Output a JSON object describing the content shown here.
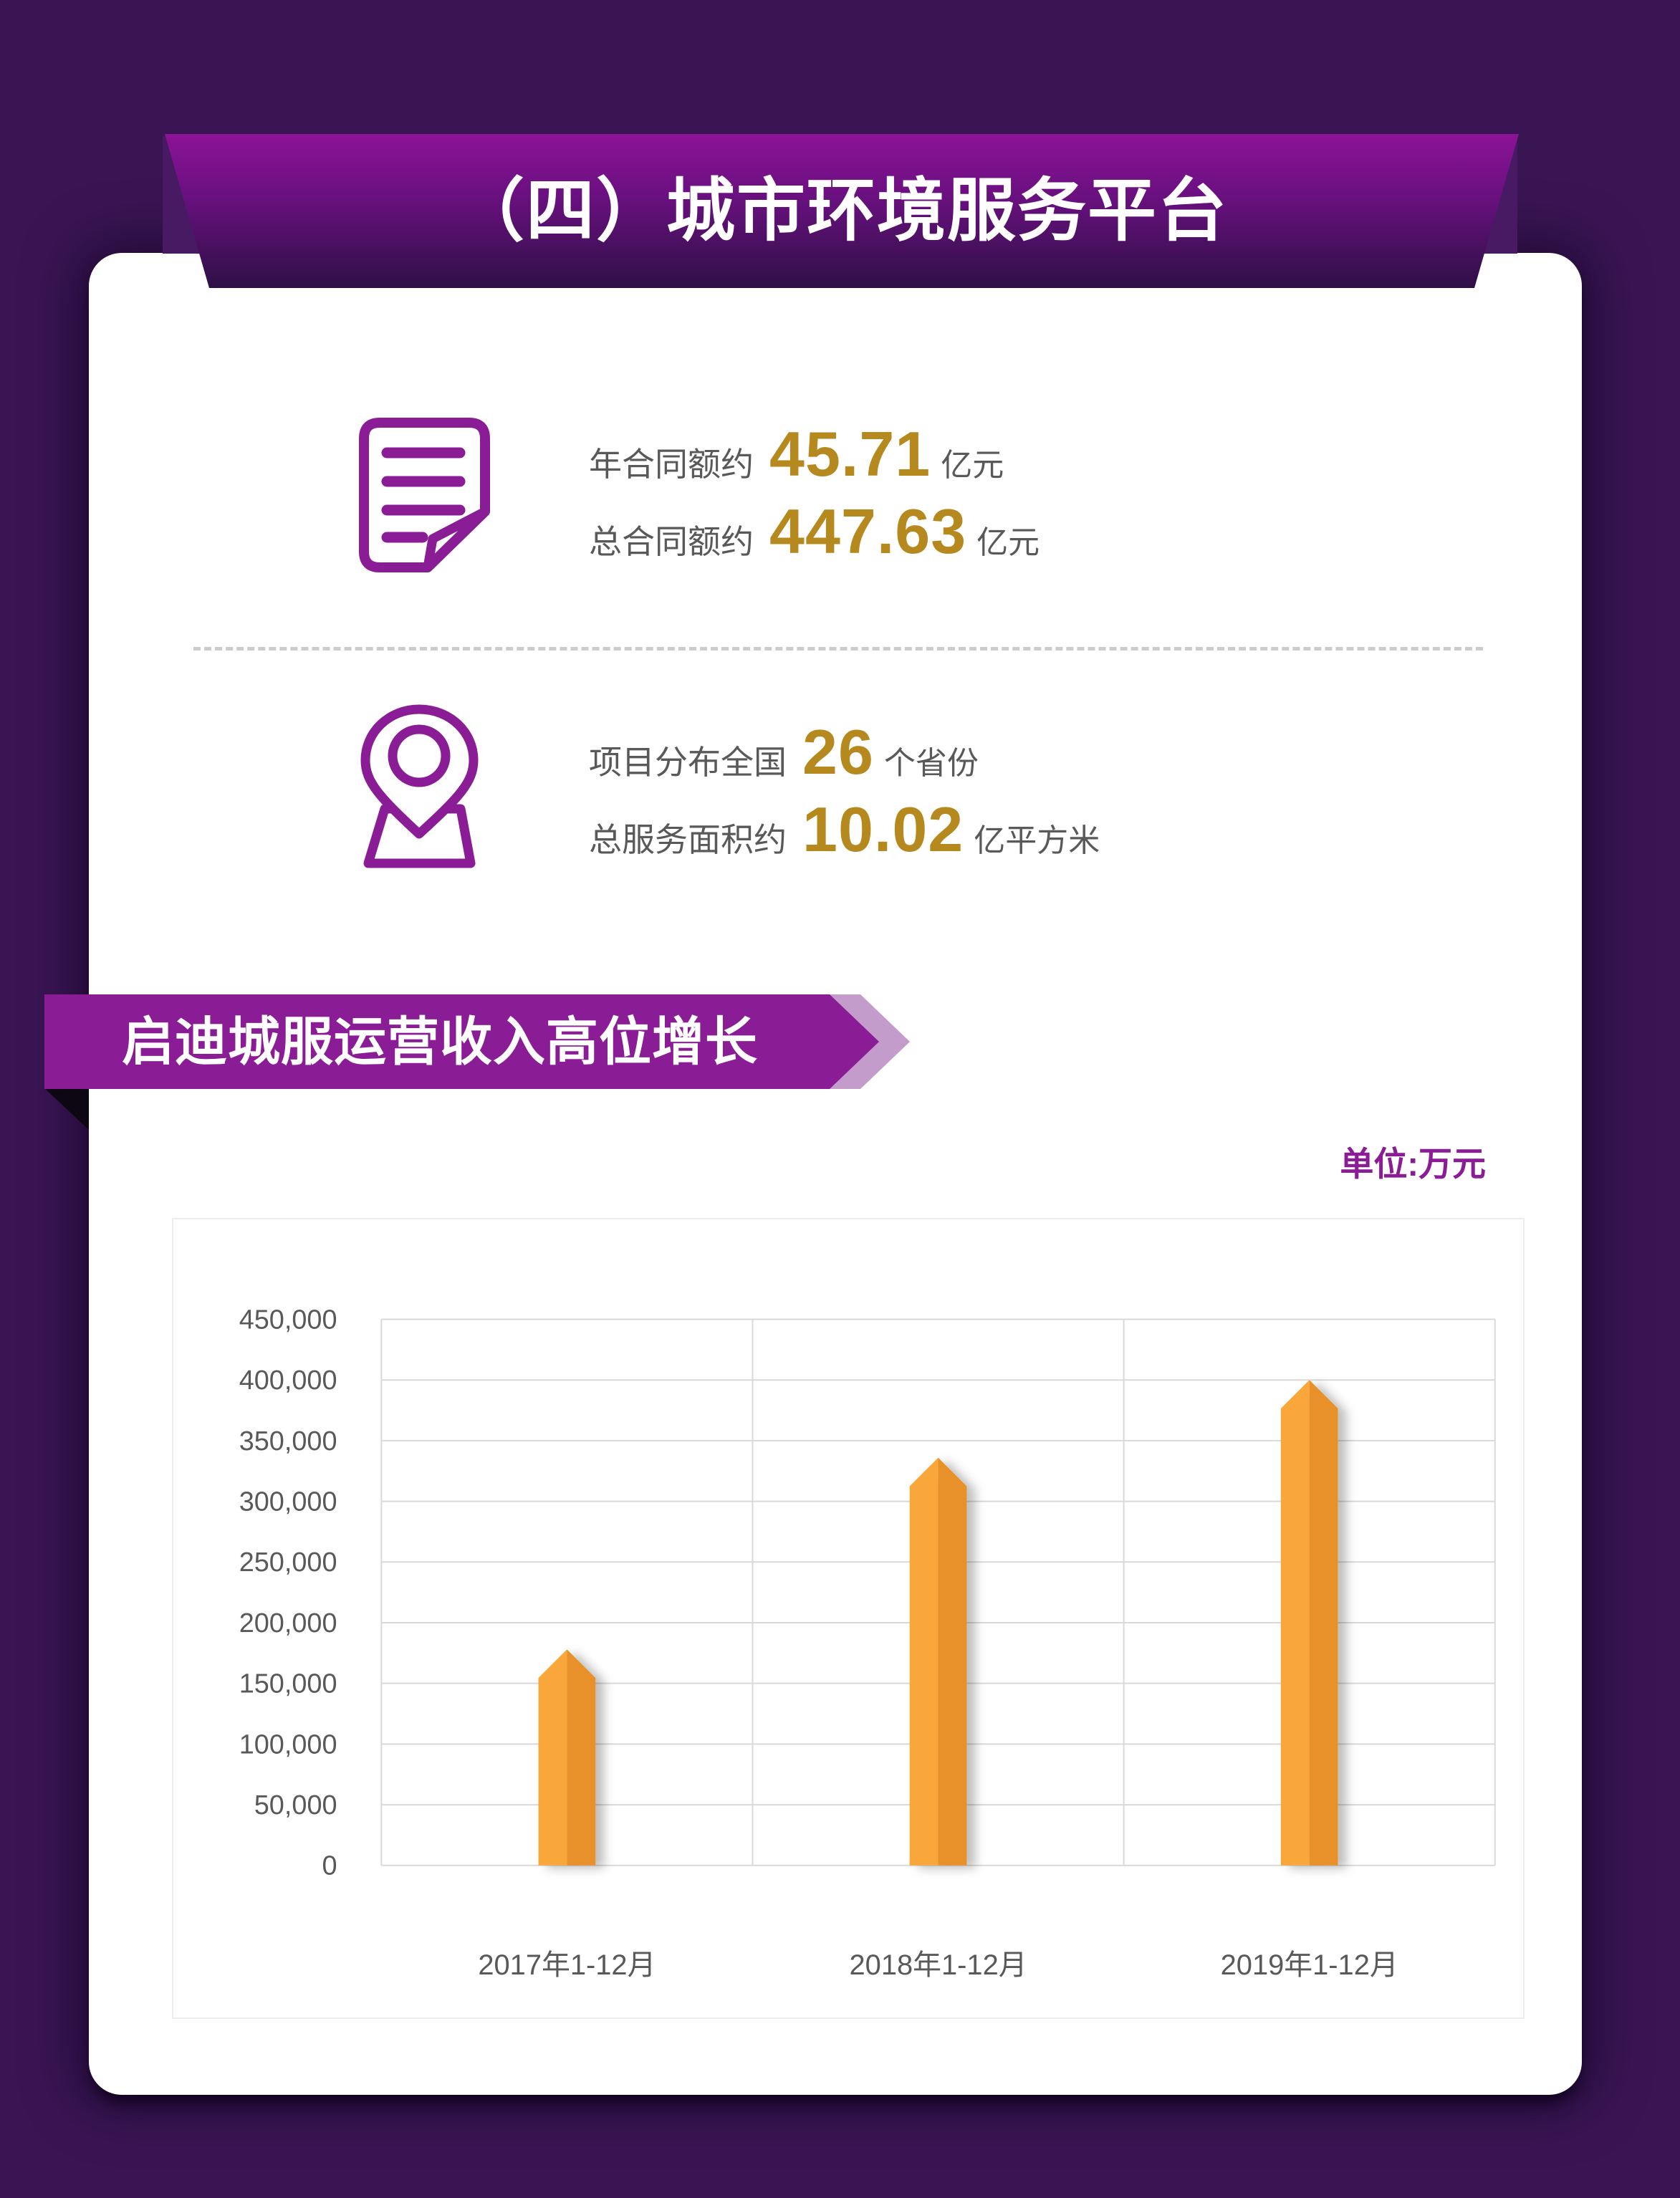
{
  "header": {
    "title": "（四）城市环境服务平台"
  },
  "stats": {
    "rows": [
      {
        "icon": "document-icon",
        "lines": [
          {
            "label": "年合同额约",
            "value": "45.71",
            "unit": "亿元"
          },
          {
            "label": "总合同额约",
            "value": "447.63",
            "unit": "亿元"
          }
        ]
      },
      {
        "icon": "location-pin-icon",
        "lines": [
          {
            "label": "项目分布全国",
            "value": "26",
            "unit": "个省份"
          },
          {
            "label": "总服务面积约",
            "value": "10.02",
            "unit": "亿平方米"
          }
        ]
      }
    ]
  },
  "ribbon": {
    "title": "启迪城服运营收入高位增长"
  },
  "chart": {
    "unit_label": "单位:万元"
  },
  "chart_data": {
    "type": "bar",
    "title": "启迪城服运营收入高位增长",
    "categories": [
      "2017年1-12月",
      "2018年1-12月",
      "2019年1-12月"
    ],
    "values": [
      178000,
      336000,
      400000
    ],
    "xlabel": "",
    "ylabel": "单位:万元",
    "ylim": [
      0,
      450000
    ],
    "ytick_step": 50000,
    "y_tick_labels": [
      "0",
      "50,000",
      "100,000",
      "150,000",
      "200,000",
      "250,000",
      "300,000",
      "350,000",
      "400,000",
      "450,000"
    ],
    "grid": true,
    "legend": "none",
    "bar_colors": [
      "#F9A63A",
      "#E8912A"
    ]
  },
  "colors": {
    "background": "#3A1553",
    "banner_gradient_top": "#8C1397",
    "banner_gradient_bottom": "#2E1046",
    "accent_purple": "#8A1D96",
    "ribbon_purple": "#8A1C96",
    "ribbon_echo": "#C49CCC",
    "gold": "#B6891F",
    "text_gray": "#595959",
    "grid_line": "#D9D9D9",
    "axis_text": "#595959"
  }
}
